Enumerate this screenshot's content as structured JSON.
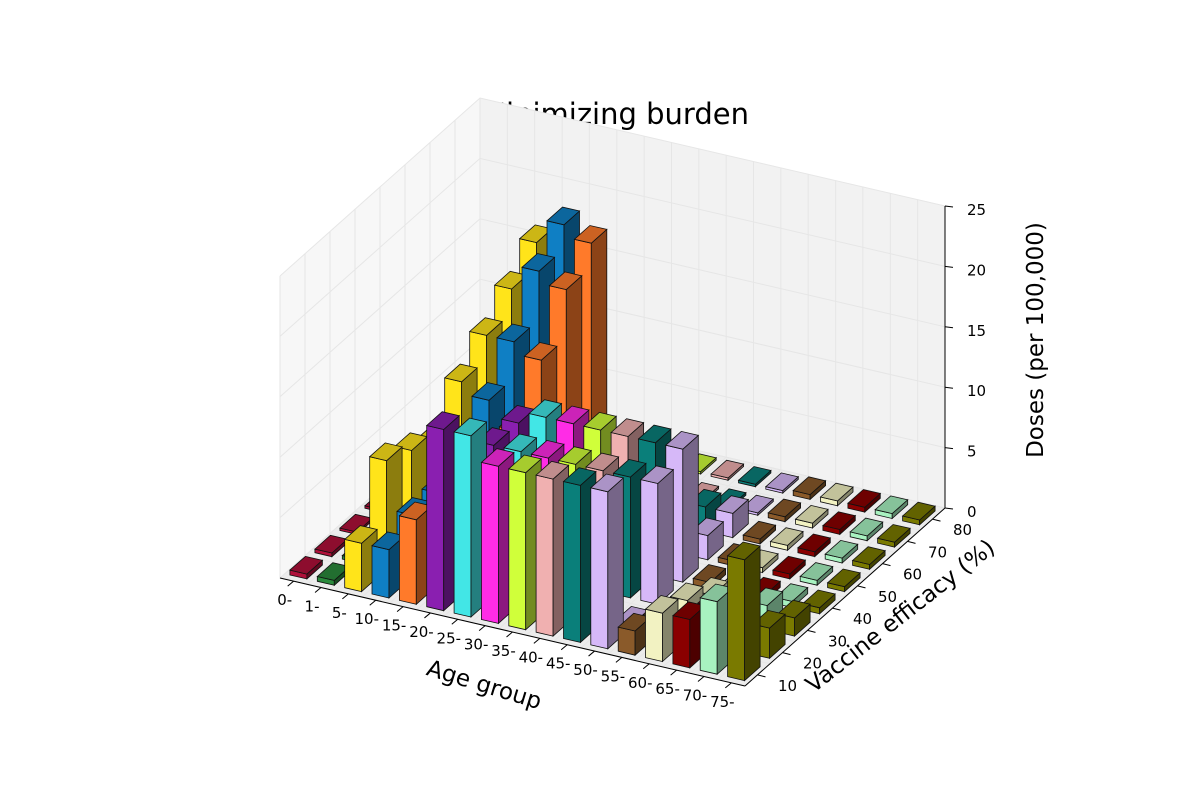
{
  "chart_data": {
    "type": "bar3d",
    "title": "Minimizing burden",
    "xlabel": "Age group",
    "ylabel": "Vaccine efficacy (%)",
    "zlabel": "Doses (per 100,000)",
    "zlim": [
      0,
      25
    ],
    "z_ticks": [
      "0",
      "5",
      "10",
      "15",
      "20",
      "25"
    ],
    "y_ticks": [
      "10",
      "20",
      "30",
      "40",
      "50",
      "60",
      "70",
      "80"
    ],
    "grid": true,
    "categories": [
      "0-",
      "1-",
      "5-",
      "10-",
      "15-",
      "20-",
      "25-",
      "30-",
      "35-",
      "40-",
      "45-",
      "50-",
      "55-",
      "60-",
      "65-",
      "70-",
      "75-"
    ],
    "efficacies": [
      10,
      20,
      30,
      40,
      50,
      60,
      70,
      80
    ],
    "colors": [
      "#b0103a",
      "#2a8a3c",
      "#ffe41a",
      "#0f7fc4",
      "#ff7a2a",
      "#8a1fb0",
      "#42e6e6",
      "#ff2ce6",
      "#d0ff3a",
      "#f0b0b0",
      "#0a7f7a",
      "#d6b8f8",
      "#8a5a2a",
      "#f2f2c2",
      "#8a0000",
      "#a8f2c0",
      "#7a7a00"
    ],
    "series": [
      {
        "efficacy": 10,
        "values": [
          0.4,
          0.4,
          4.0,
          4.0,
          7.0,
          15.0,
          15.0,
          13.0,
          13.0,
          13.0,
          13.0,
          13.0,
          2.0,
          4.0,
          4.0,
          6.0,
          10.0
        ]
      },
      {
        "efficacy": 20,
        "values": [
          0.3,
          0.3,
          9.0,
          5.0,
          4.0,
          0.2,
          0.2,
          0.2,
          0.2,
          0.2,
          0.2,
          0.2,
          1.2,
          3.2,
          3.2,
          4.5,
          2.5
        ]
      },
      {
        "efficacy": 30,
        "values": [
          0.2,
          0.2,
          8.0,
          5.0,
          3.0,
          10.0,
          10.0,
          10.0,
          10.0,
          10.0,
          10.0,
          10.0,
          0.6,
          1.8,
          1.8,
          2.0,
          1.5
        ]
      },
      {
        "efficacy": 40,
        "values": [
          0.2,
          0.2,
          7.0,
          5.0,
          5.0,
          10.0,
          11.0,
          11.0,
          11.0,
          11.0,
          11.0,
          11.0,
          0.5,
          0.5,
          0.5,
          0.5,
          0.5
        ]
      },
      {
        "efficacy": 50,
        "values": [
          0.2,
          0.2,
          10.0,
          9.0,
          7.0,
          2.0,
          2.0,
          2.0,
          2.0,
          2.0,
          2.0,
          2.0,
          0.4,
          0.4,
          0.4,
          0.4,
          0.4
        ]
      },
      {
        "efficacy": 60,
        "values": [
          0.2,
          0.2,
          12.0,
          12.0,
          11.0,
          2.0,
          2.0,
          2.0,
          2.0,
          2.0,
          2.0,
          2.0,
          0.4,
          0.4,
          0.4,
          0.4,
          0.4
        ]
      },
      {
        "efficacy": 70,
        "values": [
          0.2,
          0.2,
          14.0,
          16.0,
          15.0,
          0.2,
          0.2,
          0.2,
          0.2,
          0.2,
          0.2,
          0.2,
          0.4,
          0.4,
          0.4,
          0.4,
          0.4
        ]
      },
      {
        "efficacy": 80,
        "values": [
          0.2,
          0.2,
          16.0,
          18.0,
          17.0,
          0.2,
          0.2,
          0.2,
          0.2,
          0.2,
          0.2,
          0.2,
          0.4,
          0.4,
          0.4,
          0.4,
          0.4
        ]
      }
    ]
  }
}
